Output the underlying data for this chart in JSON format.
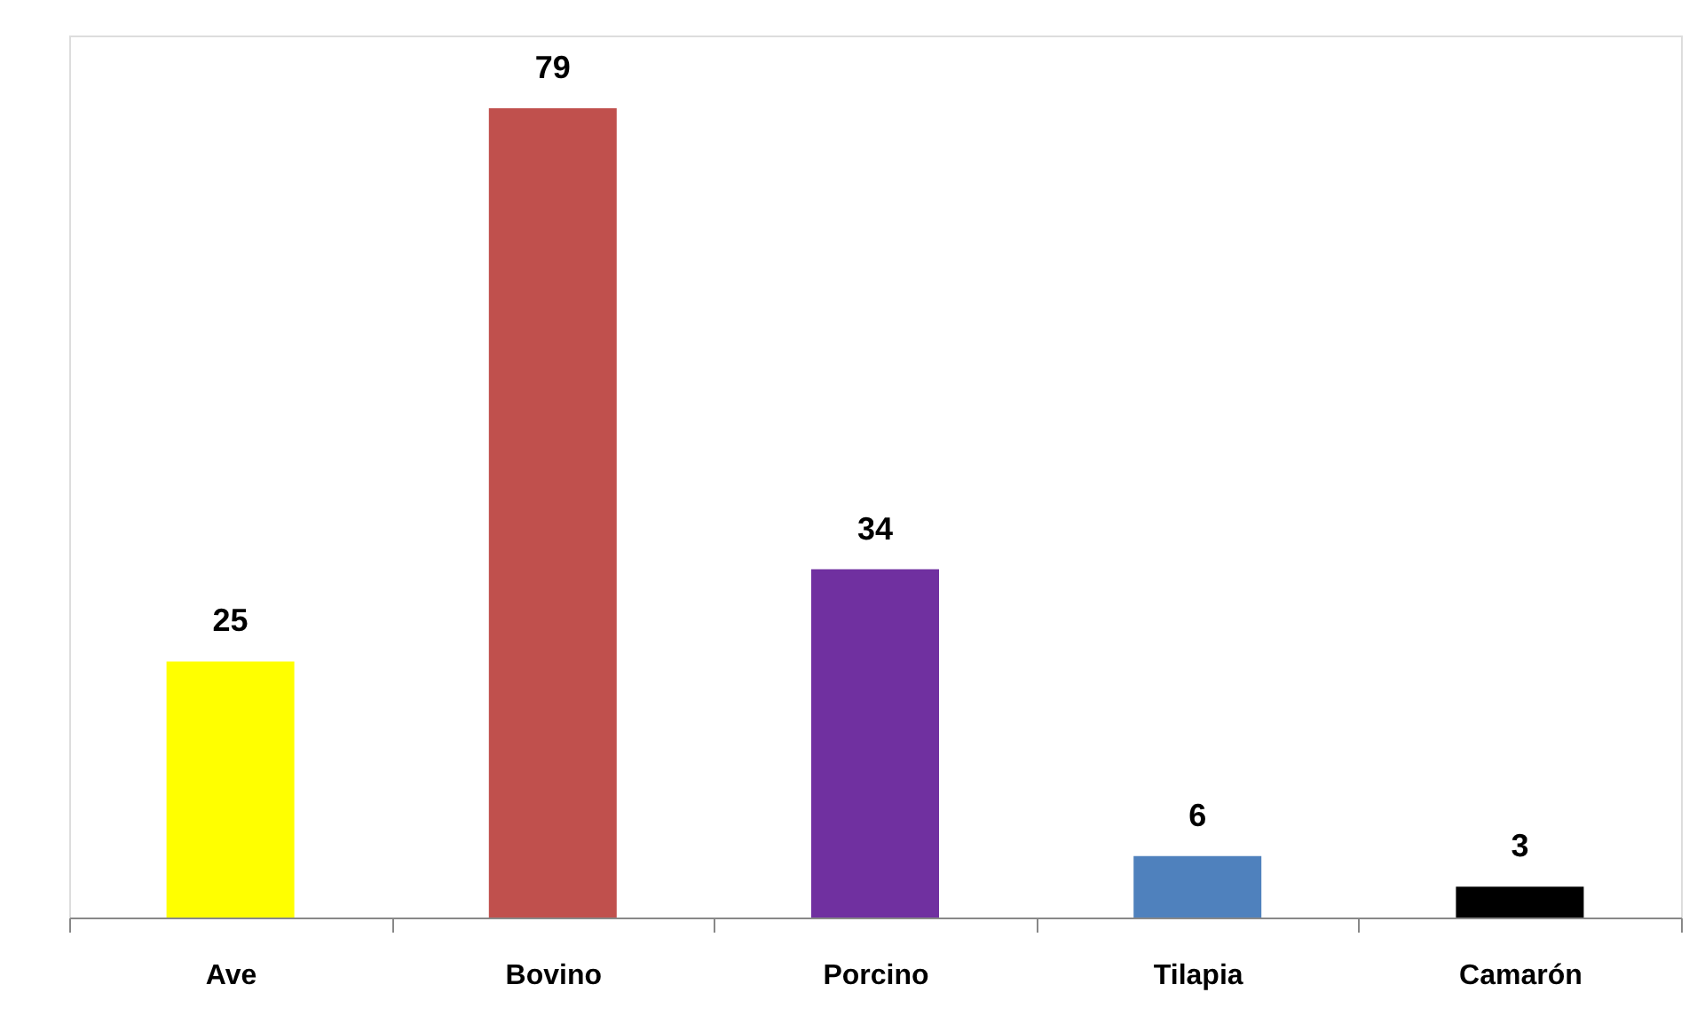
{
  "chart_data": {
    "type": "bar",
    "categories": [
      "Ave",
      "Bovino",
      "Porcino",
      "Tilapia",
      "Camarón"
    ],
    "values": [
      25,
      79,
      34,
      6,
      3
    ],
    "colors": [
      "#ffff00",
      "#c0504d",
      "#7030a0",
      "#4f81bd",
      "#000000"
    ],
    "data_labels": true
  }
}
